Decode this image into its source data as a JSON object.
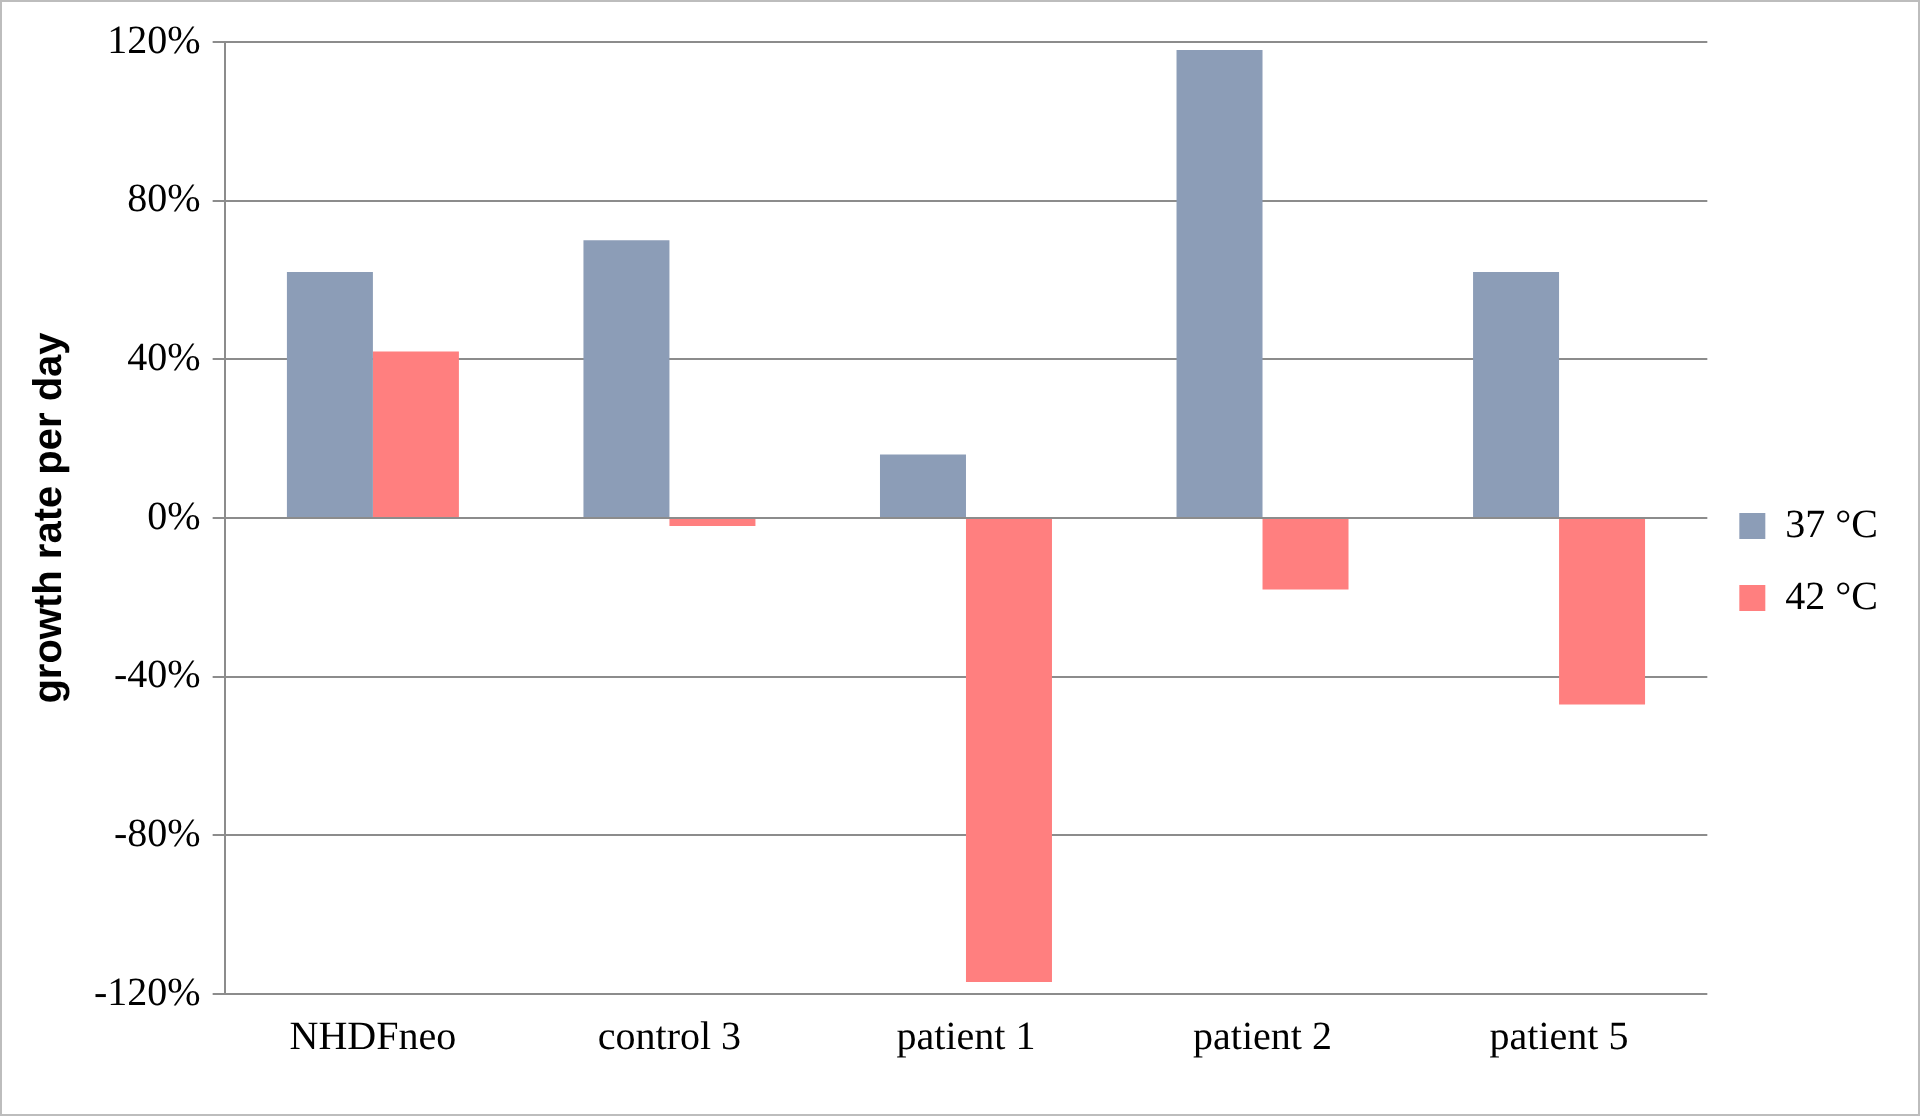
{
  "chart_data": {
    "type": "bar",
    "ylabel": "growth rate per day",
    "categories": [
      "NHDFneo",
      "control 3",
      "patient 1",
      "patient 2",
      "patient 5"
    ],
    "series": [
      {
        "name": "37 °C",
        "color": "#8c9db7",
        "values": [
          62,
          70,
          16,
          118,
          62
        ]
      },
      {
        "name": "42 °C",
        "color": "#ff7f7f",
        "values": [
          42,
          -2,
          -117,
          -18,
          -47
        ]
      }
    ],
    "ylim": [
      -120,
      120
    ],
    "yticks": [
      {
        "value": -120,
        "label": "-120%"
      },
      {
        "value": -80,
        "label": "-80%"
      },
      {
        "value": -40,
        "label": "-40%"
      },
      {
        "value": 0,
        "label": "0%"
      },
      {
        "value": 40,
        "label": "40%"
      },
      {
        "value": 80,
        "label": "80%"
      },
      {
        "value": 120,
        "label": "120%"
      }
    ],
    "grid": "y",
    "legend": "right"
  }
}
